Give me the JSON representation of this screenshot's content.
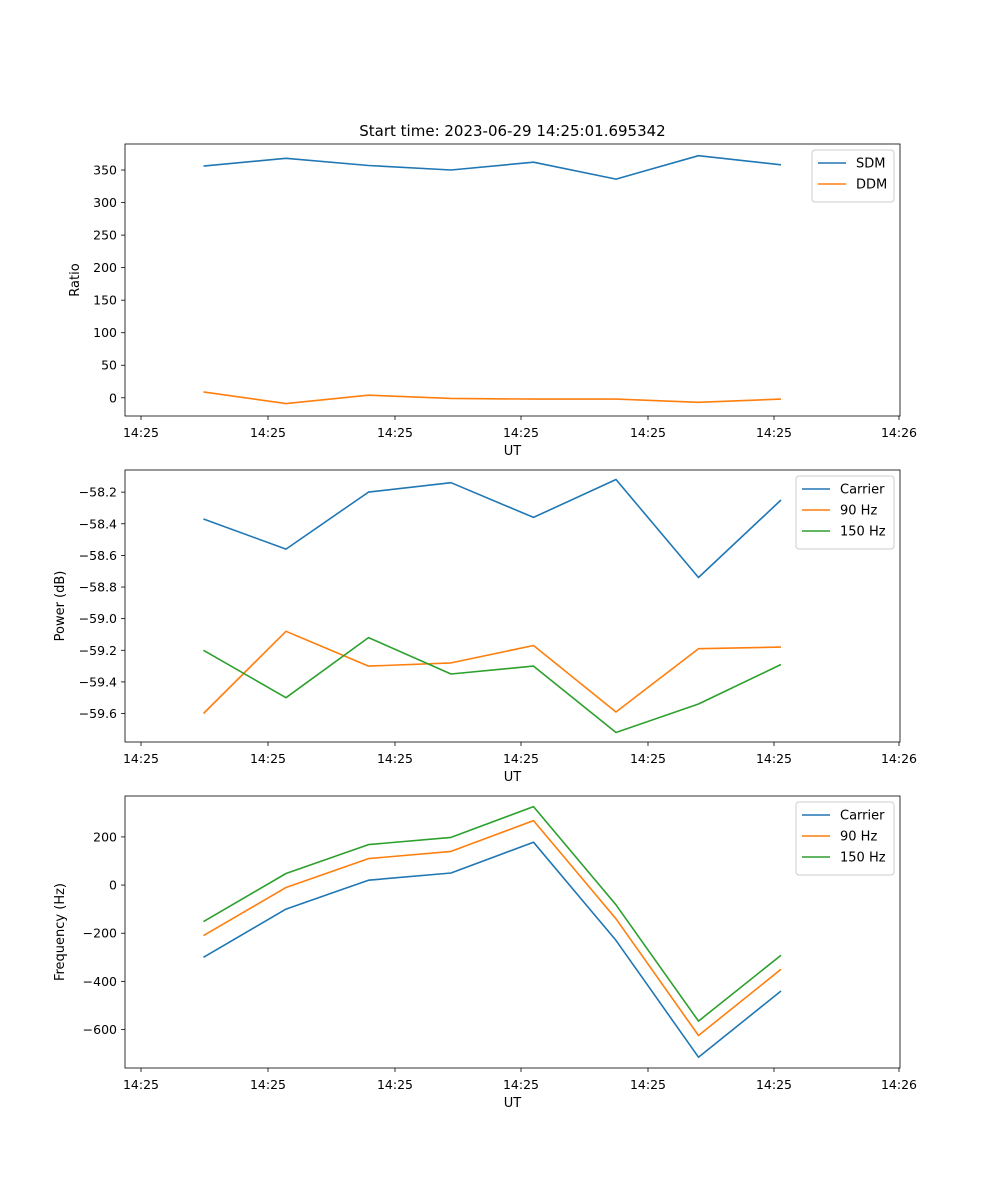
{
  "figure": {
    "title": "Start time: 2023-06-29 14:25:01.695342"
  },
  "colors": {
    "blue": "#1f77b4",
    "orange": "#ff7f0e",
    "green": "#2ca02c"
  },
  "chart_data": [
    {
      "type": "line",
      "title": "Start time: 2023-06-29 14:25:01.695342",
      "xlabel": "UT",
      "ylabel": "Ratio",
      "x_tick_labels": [
        "14:25",
        "14:25",
        "14:25",
        "14:25",
        "14:25",
        "14:25",
        "14:26"
      ],
      "ylim": [
        -28,
        390
      ],
      "yticks": [
        0,
        50,
        100,
        150,
        200,
        250,
        300,
        350
      ],
      "ytick_labels": [
        "0",
        "50",
        "100",
        "150",
        "200",
        "250",
        "300",
        "350"
      ],
      "legend_position": "top-right",
      "series": [
        {
          "name": "SDM",
          "color": "#1f77b4",
          "values": [
            356,
            368,
            357,
            350,
            362,
            336,
            372,
            358
          ]
        },
        {
          "name": "DDM",
          "color": "#ff7f0e",
          "values": [
            9,
            -9,
            4,
            -1,
            -2,
            -2,
            -7,
            -2
          ]
        }
      ]
    },
    {
      "type": "line",
      "xlabel": "UT",
      "ylabel": "Power (dB)",
      "x_tick_labels": [
        "14:25",
        "14:25",
        "14:25",
        "14:25",
        "14:25",
        "14:25",
        "14:26"
      ],
      "ylim": [
        -59.78,
        -58.06
      ],
      "yticks": [
        -59.6,
        -59.4,
        -59.2,
        -59.0,
        -58.8,
        -58.6,
        -58.4,
        -58.2
      ],
      "ytick_labels": [
        "−59.6",
        "−59.4",
        "−59.2",
        "−59.0",
        "−58.8",
        "−58.6",
        "−58.4",
        "−58.2"
      ],
      "legend_position": "top-right",
      "series": [
        {
          "name": "Carrier",
          "color": "#1f77b4",
          "values": [
            -58.37,
            -58.56,
            -58.2,
            -58.14,
            -58.36,
            -58.12,
            -58.74,
            -58.25
          ]
        },
        {
          "name": "90 Hz",
          "color": "#ff7f0e",
          "values": [
            -59.6,
            -59.08,
            -59.3,
            -59.28,
            -59.17,
            -59.59,
            -59.19,
            -59.18
          ]
        },
        {
          "name": "150 Hz",
          "color": "#2ca02c",
          "values": [
            -59.2,
            -59.5,
            -59.12,
            -59.35,
            -59.3,
            -59.72,
            -59.54,
            -59.29
          ]
        }
      ]
    },
    {
      "type": "line",
      "xlabel": "UT",
      "ylabel": "Frequency (Hz)",
      "x_tick_labels": [
        "14:25",
        "14:25",
        "14:25",
        "14:25",
        "14:25",
        "14:25",
        "14:26"
      ],
      "ylim": [
        -760,
        370
      ],
      "yticks": [
        -600,
        -400,
        -200,
        0,
        200
      ],
      "ytick_labels": [
        "−600",
        "−400",
        "−200",
        "0",
        "200"
      ],
      "legend_position": "top-right",
      "series": [
        {
          "name": "Carrier",
          "color": "#1f77b4",
          "values": [
            -300,
            -100,
            20,
            50,
            178,
            -230,
            -715,
            -440
          ]
        },
        {
          "name": "90 Hz",
          "color": "#ff7f0e",
          "values": [
            -210,
            -10,
            110,
            140,
            268,
            -140,
            -625,
            -350
          ]
        },
        {
          "name": "150 Hz",
          "color": "#2ca02c",
          "values": [
            -152,
            48,
            168,
            198,
            326,
            -82,
            -565,
            -292
          ]
        }
      ]
    }
  ]
}
